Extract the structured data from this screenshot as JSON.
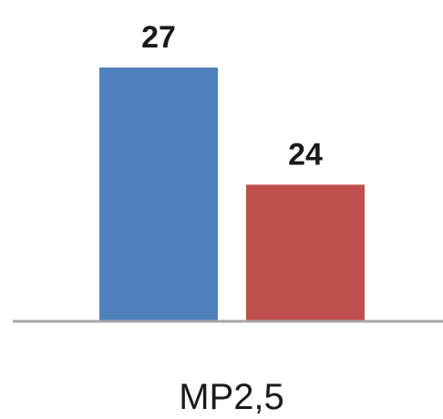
{
  "chart_data": {
    "type": "bar",
    "categories": [
      "MP2,5"
    ],
    "series": [
      {
        "values": [
          27
        ],
        "color": "#4f81bd"
      },
      {
        "values": [
          24
        ],
        "color": "#c0504d"
      }
    ],
    "data_labels": [
      "27",
      "24"
    ],
    "title": "",
    "xlabel": "",
    "ylabel": "",
    "ylim": [
      20.5,
      28.5
    ],
    "grid": false,
    "axis_color": "#a6a6a6"
  }
}
